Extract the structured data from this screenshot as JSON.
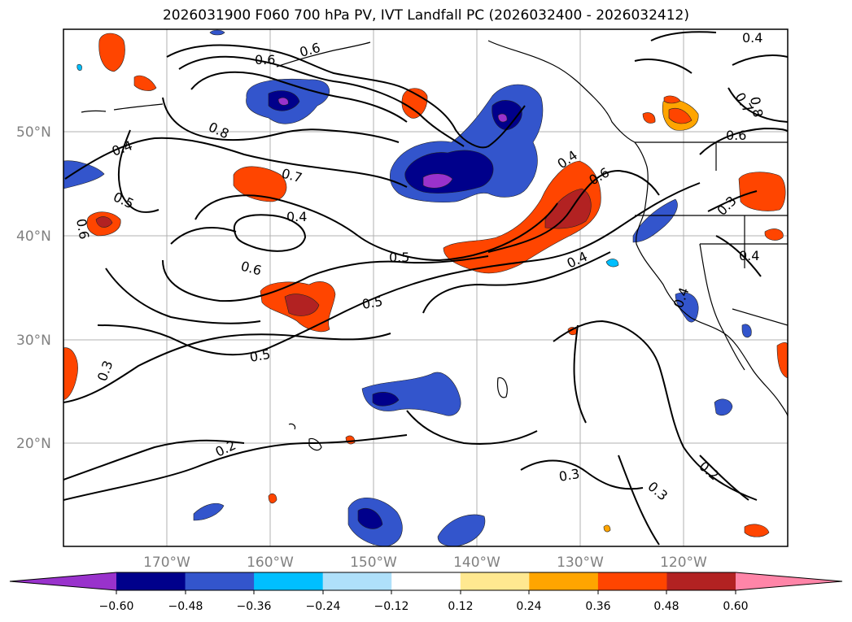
{
  "title": "2026031900 F060 700 hPa PV, IVT Landfall PC (2026032400 - 2026032412)",
  "lat_labels": [
    "50°N",
    "40°N",
    "30°N",
    "20°N"
  ],
  "lon_labels": [
    "170°W",
    "160°W",
    "150°W",
    "140°W",
    "130°W",
    "120°W"
  ],
  "contour_labels": [
    "0.6",
    "0.8",
    "0.4",
    "0.5",
    "0.7",
    "0.4",
    "0.5",
    "0.4",
    "0.6",
    "0.5",
    "0.5",
    "0.3",
    "0.2",
    "0.3",
    "0.3",
    "0.2",
    "0.4",
    "0.4",
    "0.6",
    "0.6",
    "0.4",
    "0.3",
    "0.4",
    "0.7",
    "0.8",
    "0.6",
    "0.6"
  ],
  "colorbar": {
    "ticks": [
      "−0.60",
      "−0.48",
      "−0.36",
      "−0.24",
      "−0.12",
      "0.12",
      "0.24",
      "0.36",
      "0.48",
      "0.60"
    ],
    "colors": [
      "#9932cc",
      "#00008b",
      "#3355cc",
      "#00bfff",
      "#afe0fa",
      "#ffffff",
      "#ffe890",
      "#ffa500",
      "#ff4500",
      "#b22222",
      "#ff85a8"
    ]
  },
  "colors": {
    "gridline": "#b0b0b0",
    "axis_label": "#808080"
  }
}
